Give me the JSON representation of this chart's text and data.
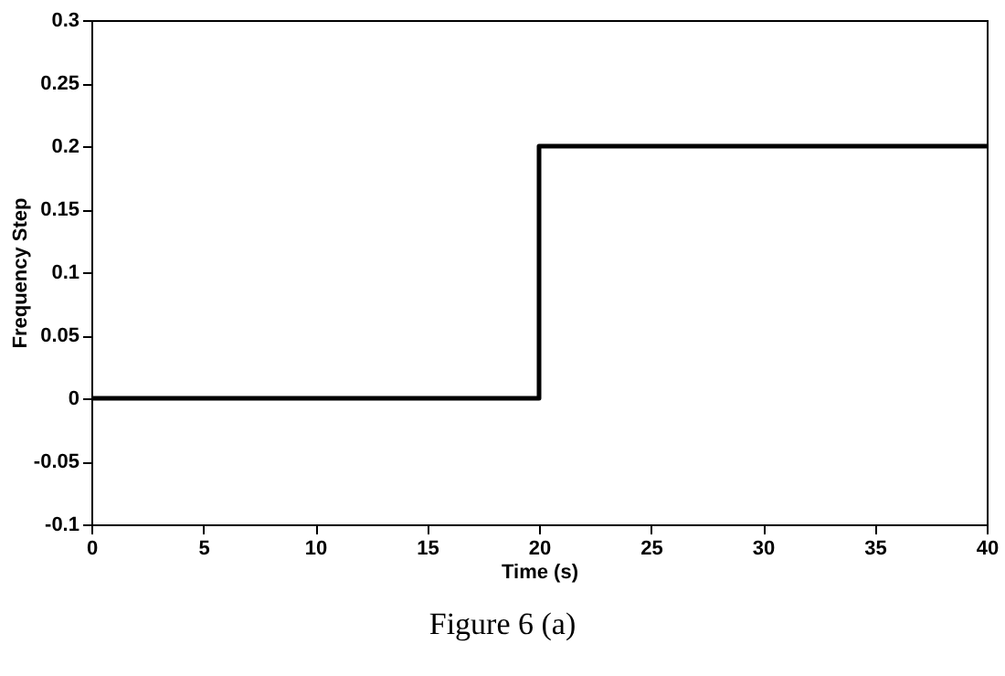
{
  "chart_data": {
    "type": "line",
    "xlabel": "Time (s)",
    "ylabel": "Frequency Step",
    "x": [
      0,
      20,
      20,
      40
    ],
    "series": [
      {
        "color": "#000000",
        "values": [
          0,
          0,
          0.2,
          0.2
        ]
      }
    ],
    "xlim": [
      0,
      40
    ],
    "xticks": [
      0,
      5,
      10,
      15,
      20,
      25,
      30,
      35,
      40
    ],
    "ylim": [
      -0.1,
      0.3
    ],
    "yticks": [
      -0.1,
      -0.05,
      0,
      0.05,
      0.1,
      0.15,
      0.2,
      0.25,
      0.3
    ],
    "grid": false,
    "legend": false,
    "marker": "none",
    "line_style": "solid",
    "annotations": [
      "Figure 6 (a)"
    ]
  }
}
